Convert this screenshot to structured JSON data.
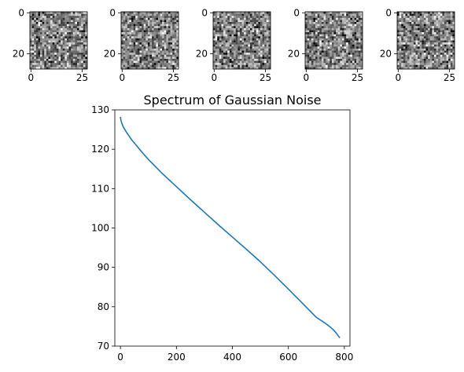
{
  "chart_data": [
    {
      "type": "heatmap",
      "title": "",
      "rows": 28,
      "cols": 28,
      "x_ticks": [
        "0",
        "25"
      ],
      "y_ticks": [
        "0",
        "20"
      ],
      "colormap": "gray",
      "content": "gaussian noise sample 1"
    },
    {
      "type": "heatmap",
      "title": "",
      "rows": 28,
      "cols": 28,
      "x_ticks": [
        "0",
        "25"
      ],
      "y_ticks": [
        "0",
        "20"
      ],
      "colormap": "gray",
      "content": "gaussian noise sample 2"
    },
    {
      "type": "heatmap",
      "title": "",
      "rows": 28,
      "cols": 28,
      "x_ticks": [
        "0",
        "25"
      ],
      "y_ticks": [
        "0",
        "20"
      ],
      "colormap": "gray",
      "content": "gaussian noise sample 3"
    },
    {
      "type": "heatmap",
      "title": "",
      "rows": 28,
      "cols": 28,
      "x_ticks": [
        "0",
        "25"
      ],
      "y_ticks": [
        "0",
        "20"
      ],
      "colormap": "gray",
      "content": "gaussian noise sample 4"
    },
    {
      "type": "heatmap",
      "title": "",
      "rows": 28,
      "cols": 28,
      "x_ticks": [
        "0",
        "25"
      ],
      "y_ticks": [
        "0",
        "20"
      ],
      "colormap": "gray",
      "content": "gaussian noise sample 5"
    },
    {
      "type": "line",
      "title": "Spectrum of Gaussian Noise",
      "xlabel": "",
      "ylabel": "",
      "xlim": [
        -20,
        820
      ],
      "ylim": [
        70,
        130
      ],
      "x_ticks": [
        0,
        200,
        400,
        600,
        800
      ],
      "y_ticks": [
        70,
        80,
        90,
        100,
        110,
        120,
        130
      ],
      "grid": false,
      "color": "#1f77b4",
      "x": [
        0,
        2,
        5,
        10,
        20,
        40,
        60,
        80,
        100,
        150,
        200,
        250,
        300,
        350,
        400,
        450,
        500,
        550,
        600,
        650,
        700,
        730,
        750,
        760,
        770,
        780,
        784
      ],
      "y": [
        128.2,
        127.3,
        126.6,
        125.7,
        124.5,
        122.4,
        120.7,
        119.0,
        117.4,
        113.8,
        110.5,
        107.2,
        104.0,
        100.8,
        97.7,
        94.6,
        91.4,
        88.0,
        84.5,
        80.9,
        77.3,
        75.9,
        74.8,
        74.2,
        73.4,
        72.4,
        72.1
      ]
    }
  ]
}
